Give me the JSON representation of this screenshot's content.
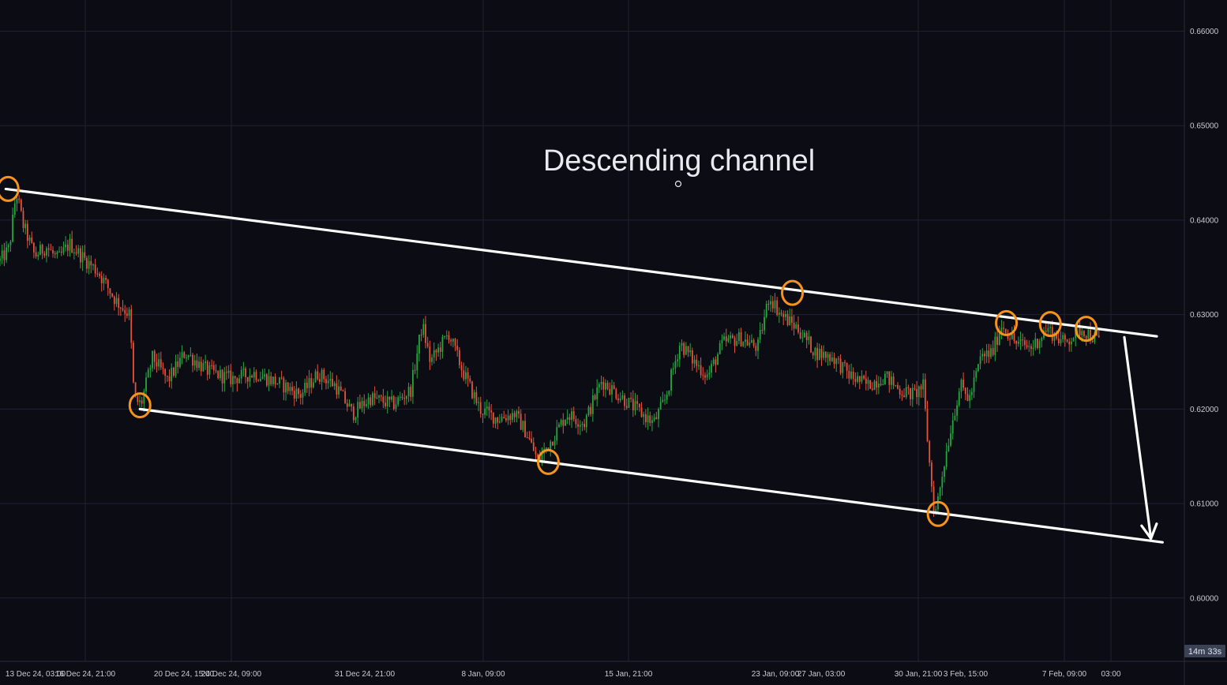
{
  "chart_data": {
    "type": "candlestick",
    "title": "Descending channel",
    "y_axis": {
      "side": "right",
      "ticks": [
        "0.66000",
        "0.65000",
        "0.64000",
        "0.63000",
        "0.62000",
        "0.61000",
        "0.60000"
      ],
      "ylim": [
        0.5933,
        0.6633
      ]
    },
    "x_axis": {
      "ticks": [
        "13 Dec 24, 03:00",
        "16 Dec 24, 21:00",
        "20 Dec 24, 15:00",
        "24 Dec 24, 09:00",
        "31 Dec 24, 21:00",
        "8 Jan, 09:00",
        "15 Jan, 21:00",
        "23 Jan, 09:00",
        "27 Jan, 03:00",
        "30 Jan, 21:00",
        "3 Feb, 15:00",
        "7 Feb, 09:00",
        "03:00"
      ]
    },
    "grid": true,
    "colors": {
      "up": "#26a641",
      "down": "#e5533d",
      "channel": "#ffffff",
      "markers": "#f7931a",
      "background": "#0b0c14"
    },
    "price_path": [
      {
        "t": 0.0,
        "p": 0.6357
      },
      {
        "t": 0.008,
        "p": 0.637
      },
      {
        "t": 0.014,
        "p": 0.643
      },
      {
        "t": 0.02,
        "p": 0.6395
      },
      {
        "t": 0.03,
        "p": 0.6362
      },
      {
        "t": 0.04,
        "p": 0.6372
      },
      {
        "t": 0.05,
        "p": 0.6358
      },
      {
        "t": 0.06,
        "p": 0.6375
      },
      {
        "t": 0.072,
        "p": 0.636
      },
      {
        "t": 0.085,
        "p": 0.6345
      },
      {
        "t": 0.1,
        "p": 0.6315
      },
      {
        "t": 0.112,
        "p": 0.63
      },
      {
        "t": 0.116,
        "p": 0.621
      },
      {
        "t": 0.122,
        "p": 0.6205
      },
      {
        "t": 0.132,
        "p": 0.6255
      },
      {
        "t": 0.145,
        "p": 0.623
      },
      {
        "t": 0.16,
        "p": 0.626
      },
      {
        "t": 0.18,
        "p": 0.624
      },
      {
        "t": 0.2,
        "p": 0.6232
      },
      {
        "t": 0.22,
        "p": 0.6238
      },
      {
        "t": 0.24,
        "p": 0.6228
      },
      {
        "t": 0.26,
        "p": 0.6215
      },
      {
        "t": 0.275,
        "p": 0.6238
      },
      {
        "t": 0.29,
        "p": 0.6225
      },
      {
        "t": 0.305,
        "p": 0.6195
      },
      {
        "t": 0.32,
        "p": 0.6212
      },
      {
        "t": 0.34,
        "p": 0.6205
      },
      {
        "t": 0.355,
        "p": 0.622
      },
      {
        "t": 0.365,
        "p": 0.629
      },
      {
        "t": 0.372,
        "p": 0.625
      },
      {
        "t": 0.388,
        "p": 0.628
      },
      {
        "t": 0.4,
        "p": 0.624
      },
      {
        "t": 0.415,
        "p": 0.62
      },
      {
        "t": 0.43,
        "p": 0.619
      },
      {
        "t": 0.445,
        "p": 0.6195
      },
      {
        "t": 0.455,
        "p": 0.6175
      },
      {
        "t": 0.465,
        "p": 0.6145
      },
      {
        "t": 0.478,
        "p": 0.617
      },
      {
        "t": 0.49,
        "p": 0.6195
      },
      {
        "t": 0.505,
        "p": 0.6185
      },
      {
        "t": 0.52,
        "p": 0.623
      },
      {
        "t": 0.535,
        "p": 0.6215
      },
      {
        "t": 0.55,
        "p": 0.62
      },
      {
        "t": 0.565,
        "p": 0.6185
      },
      {
        "t": 0.575,
        "p": 0.621
      },
      {
        "t": 0.588,
        "p": 0.627
      },
      {
        "t": 0.6,
        "p": 0.625
      },
      {
        "t": 0.612,
        "p": 0.6235
      },
      {
        "t": 0.625,
        "p": 0.627
      },
      {
        "t": 0.64,
        "p": 0.6275
      },
      {
        "t": 0.655,
        "p": 0.6265
      },
      {
        "t": 0.665,
        "p": 0.632
      },
      {
        "t": 0.675,
        "p": 0.63
      },
      {
        "t": 0.69,
        "p": 0.6285
      },
      {
        "t": 0.705,
        "p": 0.626
      },
      {
        "t": 0.72,
        "p": 0.6255
      },
      {
        "t": 0.735,
        "p": 0.6235
      },
      {
        "t": 0.75,
        "p": 0.6225
      },
      {
        "t": 0.765,
        "p": 0.6235
      },
      {
        "t": 0.778,
        "p": 0.622
      },
      {
        "t": 0.79,
        "p": 0.6215
      },
      {
        "t": 0.798,
        "p": 0.6225
      },
      {
        "t": 0.803,
        "p": 0.615
      },
      {
        "t": 0.808,
        "p": 0.6085
      },
      {
        "t": 0.815,
        "p": 0.6135
      },
      {
        "t": 0.822,
        "p": 0.618
      },
      {
        "t": 0.83,
        "p": 0.6225
      },
      {
        "t": 0.838,
        "p": 0.621
      },
      {
        "t": 0.848,
        "p": 0.6255
      },
      {
        "t": 0.858,
        "p": 0.626
      },
      {
        "t": 0.866,
        "p": 0.629
      },
      {
        "t": 0.878,
        "p": 0.627
      },
      {
        "t": 0.892,
        "p": 0.6265
      },
      {
        "t": 0.905,
        "p": 0.6285
      },
      {
        "t": 0.92,
        "p": 0.627
      },
      {
        "t": 0.935,
        "p": 0.6285
      },
      {
        "t": 0.95,
        "p": 0.6272
      }
    ],
    "channel": {
      "upper": [
        {
          "t": 0.005,
          "p": 0.6433
        },
        {
          "t": 1.0,
          "p": 0.6277
        }
      ],
      "lower": [
        {
          "t": 0.121,
          "p": 0.62
        },
        {
          "t": 1.005,
          "p": 0.6059
        }
      ]
    },
    "breakout_arrow": [
      {
        "t": 0.972,
        "p": 0.6276
      },
      {
        "t": 0.995,
        "p": 0.6063
      }
    ],
    "touch_points": [
      {
        "t": 0.007,
        "p": 0.6433
      },
      {
        "t": 0.121,
        "p": 0.6204
      },
      {
        "t": 0.474,
        "p": 0.6144
      },
      {
        "t": 0.685,
        "p": 0.6323
      },
      {
        "t": 0.811,
        "p": 0.6089
      },
      {
        "t": 0.87,
        "p": 0.6291
      },
      {
        "t": 0.908,
        "p": 0.629
      },
      {
        "t": 0.939,
        "p": 0.6285
      }
    ],
    "countdown": "14m 33s"
  }
}
